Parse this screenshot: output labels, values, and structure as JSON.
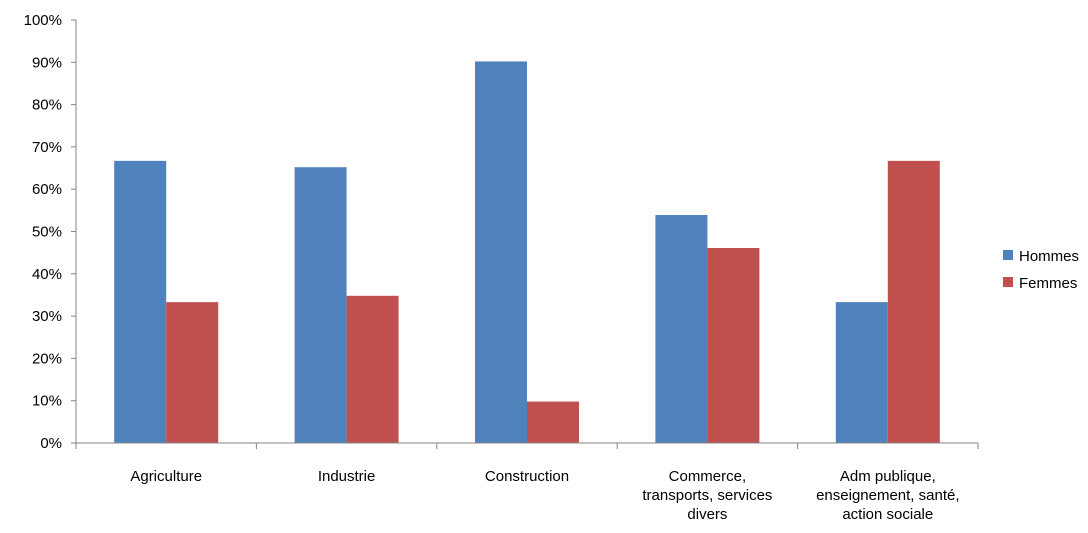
{
  "chart_data": {
    "type": "bar",
    "categories": [
      [
        "Agriculture"
      ],
      [
        "Industrie"
      ],
      [
        "Construction"
      ],
      [
        "Commerce,",
        "transports, services",
        "divers"
      ],
      [
        "Adm publique,",
        "enseignement, santé,",
        "action sociale"
      ]
    ],
    "series": [
      {
        "name": "Hommes",
        "color": "#4F81BD",
        "values": [
          66.7,
          65.2,
          90.2,
          53.9,
          33.3
        ]
      },
      {
        "name": "Femmes",
        "color": "#C0504D",
        "values": [
          33.3,
          34.8,
          9.8,
          46.1,
          66.7
        ]
      }
    ],
    "y_ticks": [
      "0%",
      "10%",
      "20%",
      "30%",
      "40%",
      "50%",
      "60%",
      "70%",
      "80%",
      "90%",
      "100%"
    ],
    "ylim": [
      0,
      100
    ],
    "grid": false,
    "legend_position": "right",
    "title": "",
    "xlabel": "",
    "ylabel": ""
  }
}
